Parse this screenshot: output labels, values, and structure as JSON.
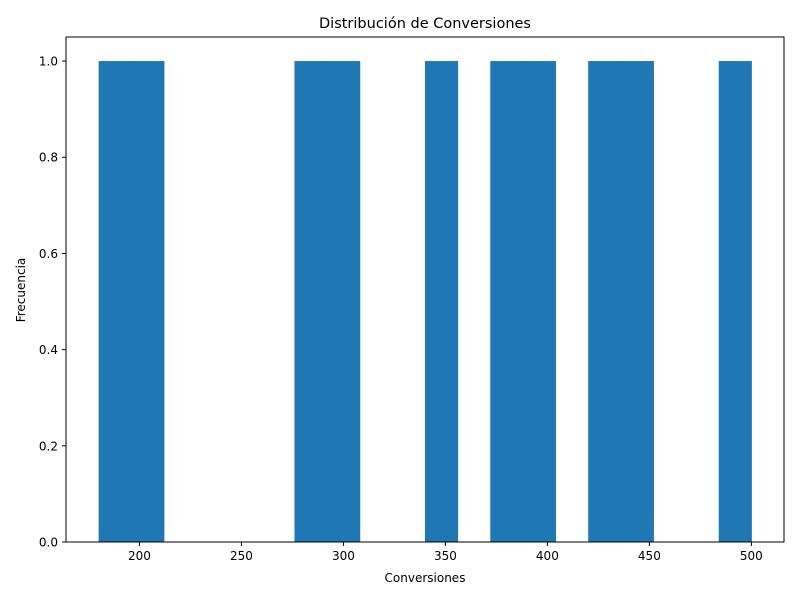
{
  "chart_data": {
    "type": "bar",
    "title": "Distribución de Conversiones",
    "xlabel": "Conversiones",
    "ylabel": "Frecuencia",
    "xlim": [
      164,
      516
    ],
    "ylim": [
      0,
      1.05
    ],
    "xticks": [
      200,
      250,
      300,
      350,
      400,
      450,
      500
    ],
    "yticks": [
      0.0,
      0.2,
      0.4,
      0.6,
      0.8,
      1.0
    ],
    "ytick_labels": [
      "0.0",
      "0.2",
      "0.4",
      "0.6",
      "0.8",
      "1.0"
    ],
    "grid": false,
    "legend": false,
    "bar_color": "#1f77b4",
    "bins": [
      {
        "x0": 180,
        "x1": 196,
        "value": 1
      },
      {
        "x0": 196,
        "x1": 212,
        "value": 1
      },
      {
        "x0": 276,
        "x1": 292,
        "value": 1
      },
      {
        "x0": 292,
        "x1": 308,
        "value": 1
      },
      {
        "x0": 340,
        "x1": 356,
        "value": 1
      },
      {
        "x0": 372,
        "x1": 388,
        "value": 1
      },
      {
        "x0": 388,
        "x1": 404,
        "value": 1
      },
      {
        "x0": 420,
        "x1": 436,
        "value": 1
      },
      {
        "x0": 436,
        "x1": 452,
        "value": 1
      },
      {
        "x0": 484,
        "x1": 500,
        "value": 1
      }
    ]
  }
}
